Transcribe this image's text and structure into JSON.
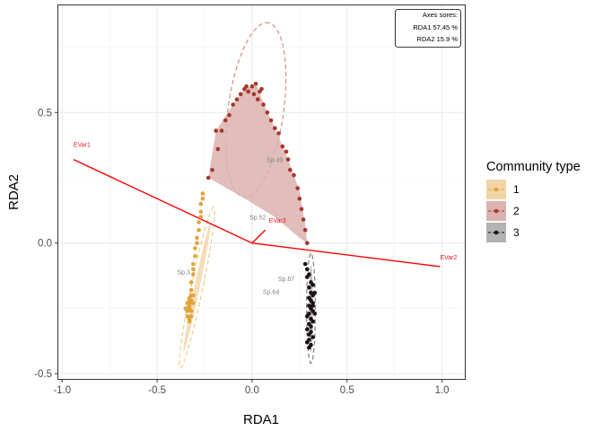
{
  "chart_data": {
    "type": "scatter",
    "title": "",
    "xlabel": "RDA1",
    "ylabel": "RDA2",
    "xlim": [
      -1.02,
      1.12
    ],
    "ylim": [
      -0.52,
      0.91
    ],
    "x_ticks": [
      -1.0,
      -0.5,
      0.0,
      0.5,
      1.0
    ],
    "x_tick_labels": [
      "-1.0",
      "-0.5",
      "0.0",
      "0.5",
      "1.0"
    ],
    "y_ticks": [
      -0.5,
      0.0,
      0.5
    ],
    "y_tick_labels": [
      "-0.5",
      "0.0",
      "0.5"
    ],
    "grid": true,
    "legend": {
      "title": "Community type",
      "position": "right",
      "entries": [
        "1",
        "2",
        "3"
      ]
    },
    "series": [
      {
        "name": "1",
        "color": "#e0a43c",
        "fill": "#f2d5a6",
        "ellipse": {
          "cx": -0.29,
          "cy": -0.17,
          "rx": 0.32,
          "ry": 0.03,
          "angle_deg": 74
        },
        "points": [
          [
            -0.26,
            0.19
          ],
          [
            -0.26,
            0.17
          ],
          [
            -0.27,
            0.15
          ],
          [
            -0.27,
            0.12
          ],
          [
            -0.27,
            0.1
          ],
          [
            -0.28,
            0.08
          ],
          [
            -0.28,
            0.05
          ],
          [
            -0.29,
            0.02
          ],
          [
            -0.29,
            0.0
          ],
          [
            -0.3,
            -0.02
          ],
          [
            -0.3,
            -0.05
          ],
          [
            -0.31,
            -0.08
          ],
          [
            -0.31,
            -0.1
          ],
          [
            -0.31,
            -0.12
          ],
          [
            -0.32,
            -0.15
          ],
          [
            -0.32,
            -0.18
          ],
          [
            -0.32,
            -0.2
          ],
          [
            -0.33,
            -0.22
          ],
          [
            -0.33,
            -0.24
          ],
          [
            -0.33,
            -0.25
          ],
          [
            -0.34,
            -0.26
          ],
          [
            -0.32,
            -0.26
          ],
          [
            -0.33,
            -0.23
          ],
          [
            -0.34,
            -0.23
          ],
          [
            -0.31,
            -0.23
          ],
          [
            -0.35,
            -0.25
          ],
          [
            -0.32,
            -0.28
          ],
          [
            -0.33,
            -0.29
          ],
          [
            -0.34,
            -0.28
          ],
          [
            -0.32,
            -0.22
          ],
          [
            -0.33,
            -0.21
          ],
          [
            -0.31,
            -0.2
          ],
          [
            -0.33,
            -0.3
          ]
        ]
      },
      {
        "name": "2",
        "color": "#a5372b",
        "fill": "#dcb2b0",
        "ellipse": {
          "cx": 0.02,
          "cy": 0.51,
          "rx": 0.34,
          "ry": 0.145,
          "angle_deg": 78
        },
        "hull": [
          [
            -0.23,
            0.25
          ],
          [
            -0.19,
            0.43
          ],
          [
            -0.1,
            0.53
          ],
          [
            -0.04,
            0.59
          ],
          [
            0.02,
            0.61
          ],
          [
            0.08,
            0.5
          ],
          [
            0.12,
            0.44
          ],
          [
            0.19,
            0.32
          ],
          [
            0.25,
            0.2
          ],
          [
            0.28,
            0.07
          ],
          [
            0.29,
            0.0
          ],
          [
            0.25,
            0.02
          ],
          [
            0.12,
            0.1
          ],
          [
            -0.06,
            0.18
          ]
        ],
        "points": [
          [
            -0.23,
            0.25
          ],
          [
            -0.21,
            0.28
          ],
          [
            -0.19,
            0.43
          ],
          [
            -0.18,
            0.36
          ],
          [
            -0.16,
            0.43
          ],
          [
            -0.14,
            0.47
          ],
          [
            -0.12,
            0.49
          ],
          [
            -0.1,
            0.53
          ],
          [
            -0.08,
            0.55
          ],
          [
            -0.06,
            0.57
          ],
          [
            -0.04,
            0.59
          ],
          [
            -0.03,
            0.6
          ],
          [
            -0.02,
            0.58
          ],
          [
            0.0,
            0.6
          ],
          [
            0.01,
            0.57
          ],
          [
            0.02,
            0.61
          ],
          [
            0.03,
            0.55
          ],
          [
            0.04,
            0.58
          ],
          [
            0.05,
            0.59
          ],
          [
            0.06,
            0.53
          ],
          [
            0.08,
            0.5
          ],
          [
            0.1,
            0.47
          ],
          [
            0.12,
            0.44
          ],
          [
            0.14,
            0.42
          ],
          [
            0.16,
            0.37
          ],
          [
            0.18,
            0.35
          ],
          [
            0.19,
            0.32
          ],
          [
            0.2,
            0.28
          ],
          [
            0.22,
            0.26
          ],
          [
            0.24,
            0.21
          ],
          [
            0.25,
            0.17
          ],
          [
            0.26,
            0.13
          ],
          [
            0.27,
            0.09
          ],
          [
            0.28,
            0.05
          ],
          [
            0.29,
            0.0
          ]
        ]
      },
      {
        "name": "3",
        "color": "#1a1212",
        "fill": "#b3b3b3",
        "ellipse": {
          "cx": 0.31,
          "cy": -0.25,
          "rx": 0.21,
          "ry": 0.023,
          "angle_deg": 90
        },
        "points": [
          [
            0.28,
            -0.08
          ],
          [
            0.29,
            -0.1
          ],
          [
            0.3,
            -0.12
          ],
          [
            0.29,
            -0.13
          ],
          [
            0.31,
            -0.15
          ],
          [
            0.3,
            -0.17
          ],
          [
            0.31,
            -0.19
          ],
          [
            0.32,
            -0.2
          ],
          [
            0.3,
            -0.21
          ],
          [
            0.31,
            -0.22
          ],
          [
            0.32,
            -0.23
          ],
          [
            0.3,
            -0.24
          ],
          [
            0.31,
            -0.25
          ],
          [
            0.32,
            -0.26
          ],
          [
            0.3,
            -0.27
          ],
          [
            0.29,
            -0.28
          ],
          [
            0.31,
            -0.29
          ],
          [
            0.32,
            -0.3
          ],
          [
            0.3,
            -0.31
          ],
          [
            0.31,
            -0.32
          ],
          [
            0.29,
            -0.33
          ],
          [
            0.31,
            -0.34
          ],
          [
            0.3,
            -0.35
          ],
          [
            0.32,
            -0.36
          ],
          [
            0.3,
            -0.37
          ],
          [
            0.29,
            -0.38
          ],
          [
            0.31,
            -0.39
          ],
          [
            0.3,
            -0.4
          ],
          [
            0.33,
            -0.27
          ],
          [
            0.32,
            -0.24
          ],
          [
            0.33,
            -0.19
          ],
          [
            0.32,
            -0.16
          ]
        ]
      }
    ],
    "env_vectors": [
      {
        "name": "EVar1",
        "x": -0.94,
        "y": 0.32
      },
      {
        "name": "EVar2",
        "x": 0.99,
        "y": -0.09
      },
      {
        "name": "EVar3",
        "x": 0.07,
        "y": 0.05
      }
    ],
    "species_labels": [
      {
        "name": "Sp.49",
        "x": 0.12,
        "y": 0.31
      },
      {
        "name": "Sp.52",
        "x": 0.03,
        "y": 0.09
      },
      {
        "name": "Sp.3",
        "x": -0.36,
        "y": -0.12
      },
      {
        "name": "Sp.67",
        "x": 0.18,
        "y": -0.145
      },
      {
        "name": "Sp.64",
        "x": 0.1,
        "y": -0.195
      }
    ]
  },
  "annotation": {
    "line1": "Axes sores:",
    "line2": "RDA1 57.45 %",
    "line3": "RDA2 15.9 %"
  }
}
